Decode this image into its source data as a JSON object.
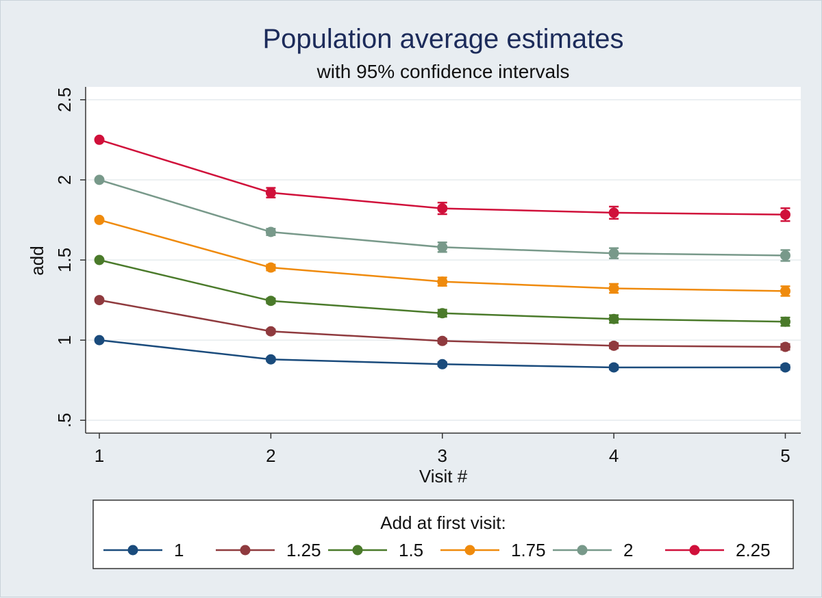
{
  "chart_data": {
    "type": "line",
    "title": "Population average estimates",
    "subtitle": "with 95% confidence intervals",
    "xlabel": "Visit #",
    "ylabel": "add",
    "x": [
      1,
      2,
      3,
      4,
      5
    ],
    "x_ticks": [
      "1",
      "2",
      "3",
      "4",
      "5"
    ],
    "y_ticks": [
      {
        "value": 0.5,
        "label": ".5"
      },
      {
        "value": 1,
        "label": "1"
      },
      {
        "value": 1.5,
        "label": "1.5"
      },
      {
        "value": 2,
        "label": "2"
      },
      {
        "value": 2.5,
        "label": "2.5"
      }
    ],
    "xlim": [
      0.92,
      5.09
    ],
    "ylim": [
      0.42,
      2.58
    ],
    "grid": true,
    "error_bars": "95% confidence intervals",
    "legend": {
      "title": "Add at first visit:",
      "position": "bottom"
    },
    "series": [
      {
        "name": "1",
        "color": "#1a4b7c",
        "values": [
          1.0,
          0.88,
          0.85,
          0.83,
          0.83
        ],
        "ci": [
          0,
          0.01,
          0.012,
          0.013,
          0.014
        ]
      },
      {
        "name": "1.25",
        "color": "#8f3a3e",
        "values": [
          1.25,
          1.055,
          0.995,
          0.965,
          0.958
        ],
        "ci": [
          0,
          0.012,
          0.014,
          0.016,
          0.018
        ]
      },
      {
        "name": "1.5",
        "color": "#4a7a2a",
        "values": [
          1.5,
          1.245,
          1.168,
          1.132,
          1.115
        ],
        "ci": [
          0,
          0.015,
          0.022,
          0.024,
          0.026
        ]
      },
      {
        "name": "1.75",
        "color": "#ef8a0c",
        "values": [
          1.75,
          1.453,
          1.365,
          1.323,
          1.306
        ],
        "ci": [
          0,
          0.018,
          0.026,
          0.028,
          0.03
        ]
      },
      {
        "name": "2",
        "color": "#78998a",
        "values": [
          2.0,
          1.675,
          1.58,
          1.542,
          1.528
        ],
        "ci": [
          0,
          0.02,
          0.03,
          0.032,
          0.034
        ]
      },
      {
        "name": "2.25",
        "color": "#d0103a",
        "values": [
          2.25,
          1.92,
          1.822,
          1.795,
          1.783
        ],
        "ci": [
          0,
          0.03,
          0.036,
          0.038,
          0.04
        ]
      }
    ]
  }
}
